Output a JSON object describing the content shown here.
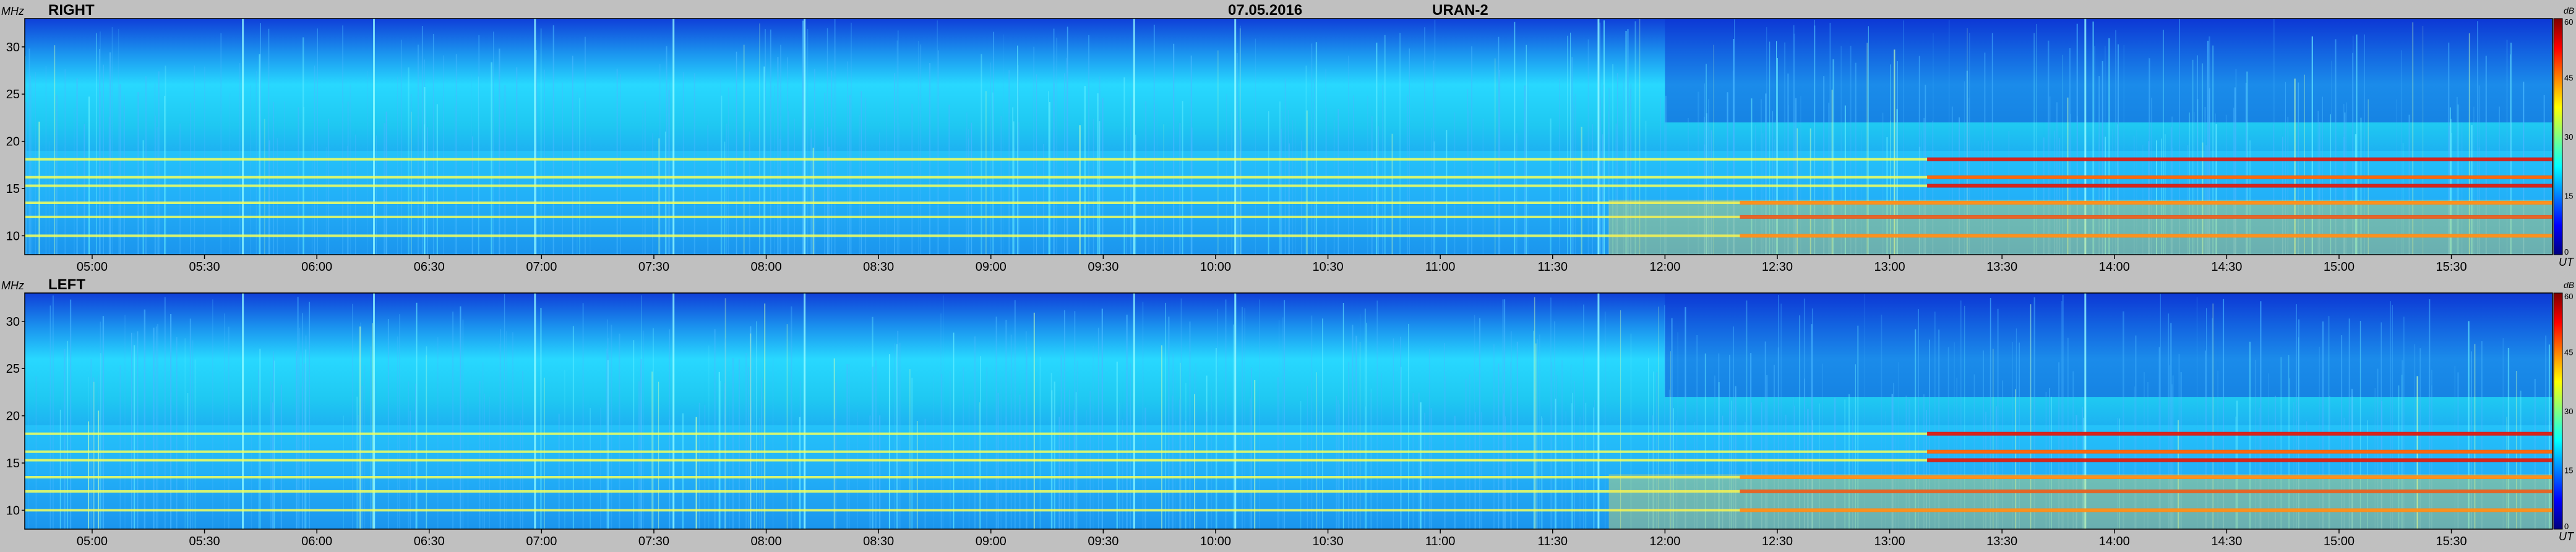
{
  "header": {
    "date": "07.05.2016",
    "instrument": "URAN-2"
  },
  "colors": {
    "background": "#c0c0c0",
    "colormap": [
      "#00007f",
      "#0000ff",
      "#0080ff",
      "#00ffff",
      "#80ff80",
      "#ffff00",
      "#ff8000",
      "#ff0000",
      "#7f0000"
    ]
  },
  "chart_data": [
    {
      "type": "heatmap",
      "title": "RIGHT",
      "ylabel": "MHz",
      "xlabel": "UT",
      "colorbar_unit": "dB",
      "colorbar_range": [
        0,
        60
      ],
      "colorbar_ticks": [
        "60",
        "45",
        "30",
        "15",
        "0"
      ],
      "ylim": [
        8,
        33
      ],
      "y_ticks": [
        "30",
        "25",
        "20",
        "15",
        "10"
      ],
      "x_ticks": [
        "05:00",
        "05:30",
        "06:00",
        "06:30",
        "07:00",
        "07:30",
        "08:00",
        "08:30",
        "09:00",
        "09:30",
        "10:00",
        "10:30",
        "11:00",
        "11:30",
        "12:00",
        "12:30",
        "13:00",
        "13:30",
        "14:00",
        "14:30",
        "15:00",
        "15:30"
      ],
      "xlim": [
        "04:42",
        "15:57"
      ],
      "bands_mhz": [
        10.0,
        12.0,
        13.5,
        15.3,
        16.2,
        18.1
      ],
      "bright_bursts_ut": [
        "05:40",
        "06:15",
        "06:58",
        "07:35",
        "08:10",
        "09:38",
        "10:05",
        "11:42",
        "13:52"
      ]
    },
    {
      "type": "heatmap",
      "title": "LEFT",
      "ylabel": "MHz",
      "xlabel": "UT",
      "colorbar_unit": "dB",
      "colorbar_range": [
        0,
        60
      ],
      "colorbar_ticks": [
        "60",
        "45",
        "30",
        "15",
        "0"
      ],
      "ylim": [
        8,
        33
      ],
      "y_ticks": [
        "30",
        "25",
        "20",
        "15",
        "10"
      ],
      "x_ticks": [
        "05:00",
        "05:30",
        "06:00",
        "06:30",
        "07:00",
        "07:30",
        "08:00",
        "08:30",
        "09:00",
        "09:30",
        "10:00",
        "10:30",
        "11:00",
        "11:30",
        "12:00",
        "12:30",
        "13:00",
        "13:30",
        "14:00",
        "14:30",
        "15:00",
        "15:30"
      ],
      "xlim": [
        "04:42",
        "15:57"
      ],
      "bands_mhz": [
        10.0,
        12.0,
        13.5,
        15.3,
        16.2,
        18.1
      ],
      "bright_bursts_ut": [
        "05:40",
        "06:15",
        "06:58",
        "07:35",
        "08:10",
        "09:38",
        "10:05",
        "11:42",
        "13:52"
      ]
    }
  ]
}
